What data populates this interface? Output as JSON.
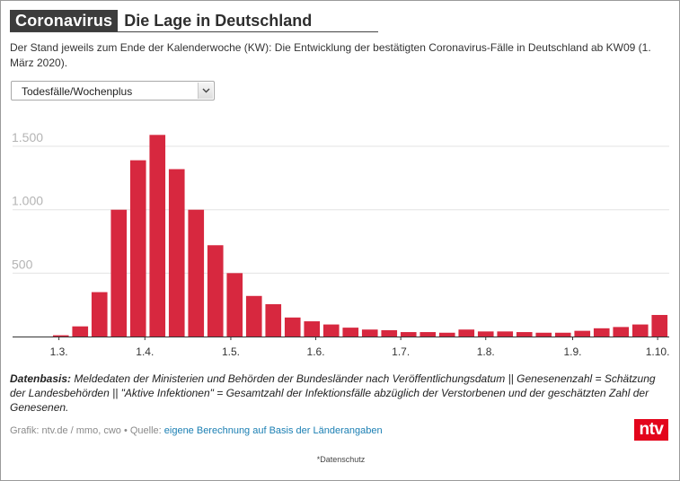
{
  "header": {
    "tag": "Coronavirus",
    "title": "Die Lage in Deutschland"
  },
  "subtitle": "Der Stand jeweils zum Ende der Kalenderwoche (KW): Die Entwicklung der bestätigten Coronavirus-Fälle in Deutschland ab KW09 (1. März 2020).",
  "dropdown": {
    "selected": "Todesfälle/Wochenplus",
    "icon": "chevron-down-icon"
  },
  "chart_data": {
    "type": "bar",
    "title": "",
    "xlabel": "",
    "ylabel": "",
    "ylim": [
      0,
      1800
    ],
    "y_ticks": [
      500,
      1000,
      1500
    ],
    "y_tick_labels": [
      "500",
      "1.000",
      "1.500"
    ],
    "x_ticks": [
      "1.3.",
      "1.4.",
      "1.5.",
      "1.6.",
      "1.7.",
      "1.8.",
      "1.9.",
      "1.10."
    ],
    "bar_color": "#d7283f",
    "grid": true,
    "series": [
      {
        "values": [
          0,
          0,
          10,
          80,
          350,
          1000,
          1390,
          1590,
          1320,
          1000,
          720,
          500,
          320,
          255,
          150,
          120,
          95,
          70,
          55,
          50,
          35,
          35,
          30,
          55,
          40,
          40,
          35,
          30,
          30,
          45,
          65,
          75,
          95,
          170
        ]
      }
    ]
  },
  "datenbasis": {
    "label": "Datenbasis:",
    "text": " Meldedaten der Ministerien und Behörden der Bundesländer nach Veröffentlichungsdatum || Genesenenzahl = Schätzung der Landesbehörden || \"Aktive Infektionen\" = Gesamtzahl der Infektionsfälle abzüglich der Verstorbenen und der geschätzten Zahl der Genesenen."
  },
  "credit": {
    "prefix": "Grafik: ntv.de / mmo, cwo • Quelle: ",
    "link": "eigene Berechnung auf Basis der Länderangaben"
  },
  "logo": {
    "text": "ntv",
    "color": "#e3051b"
  },
  "privacy": "*Datenschutz"
}
